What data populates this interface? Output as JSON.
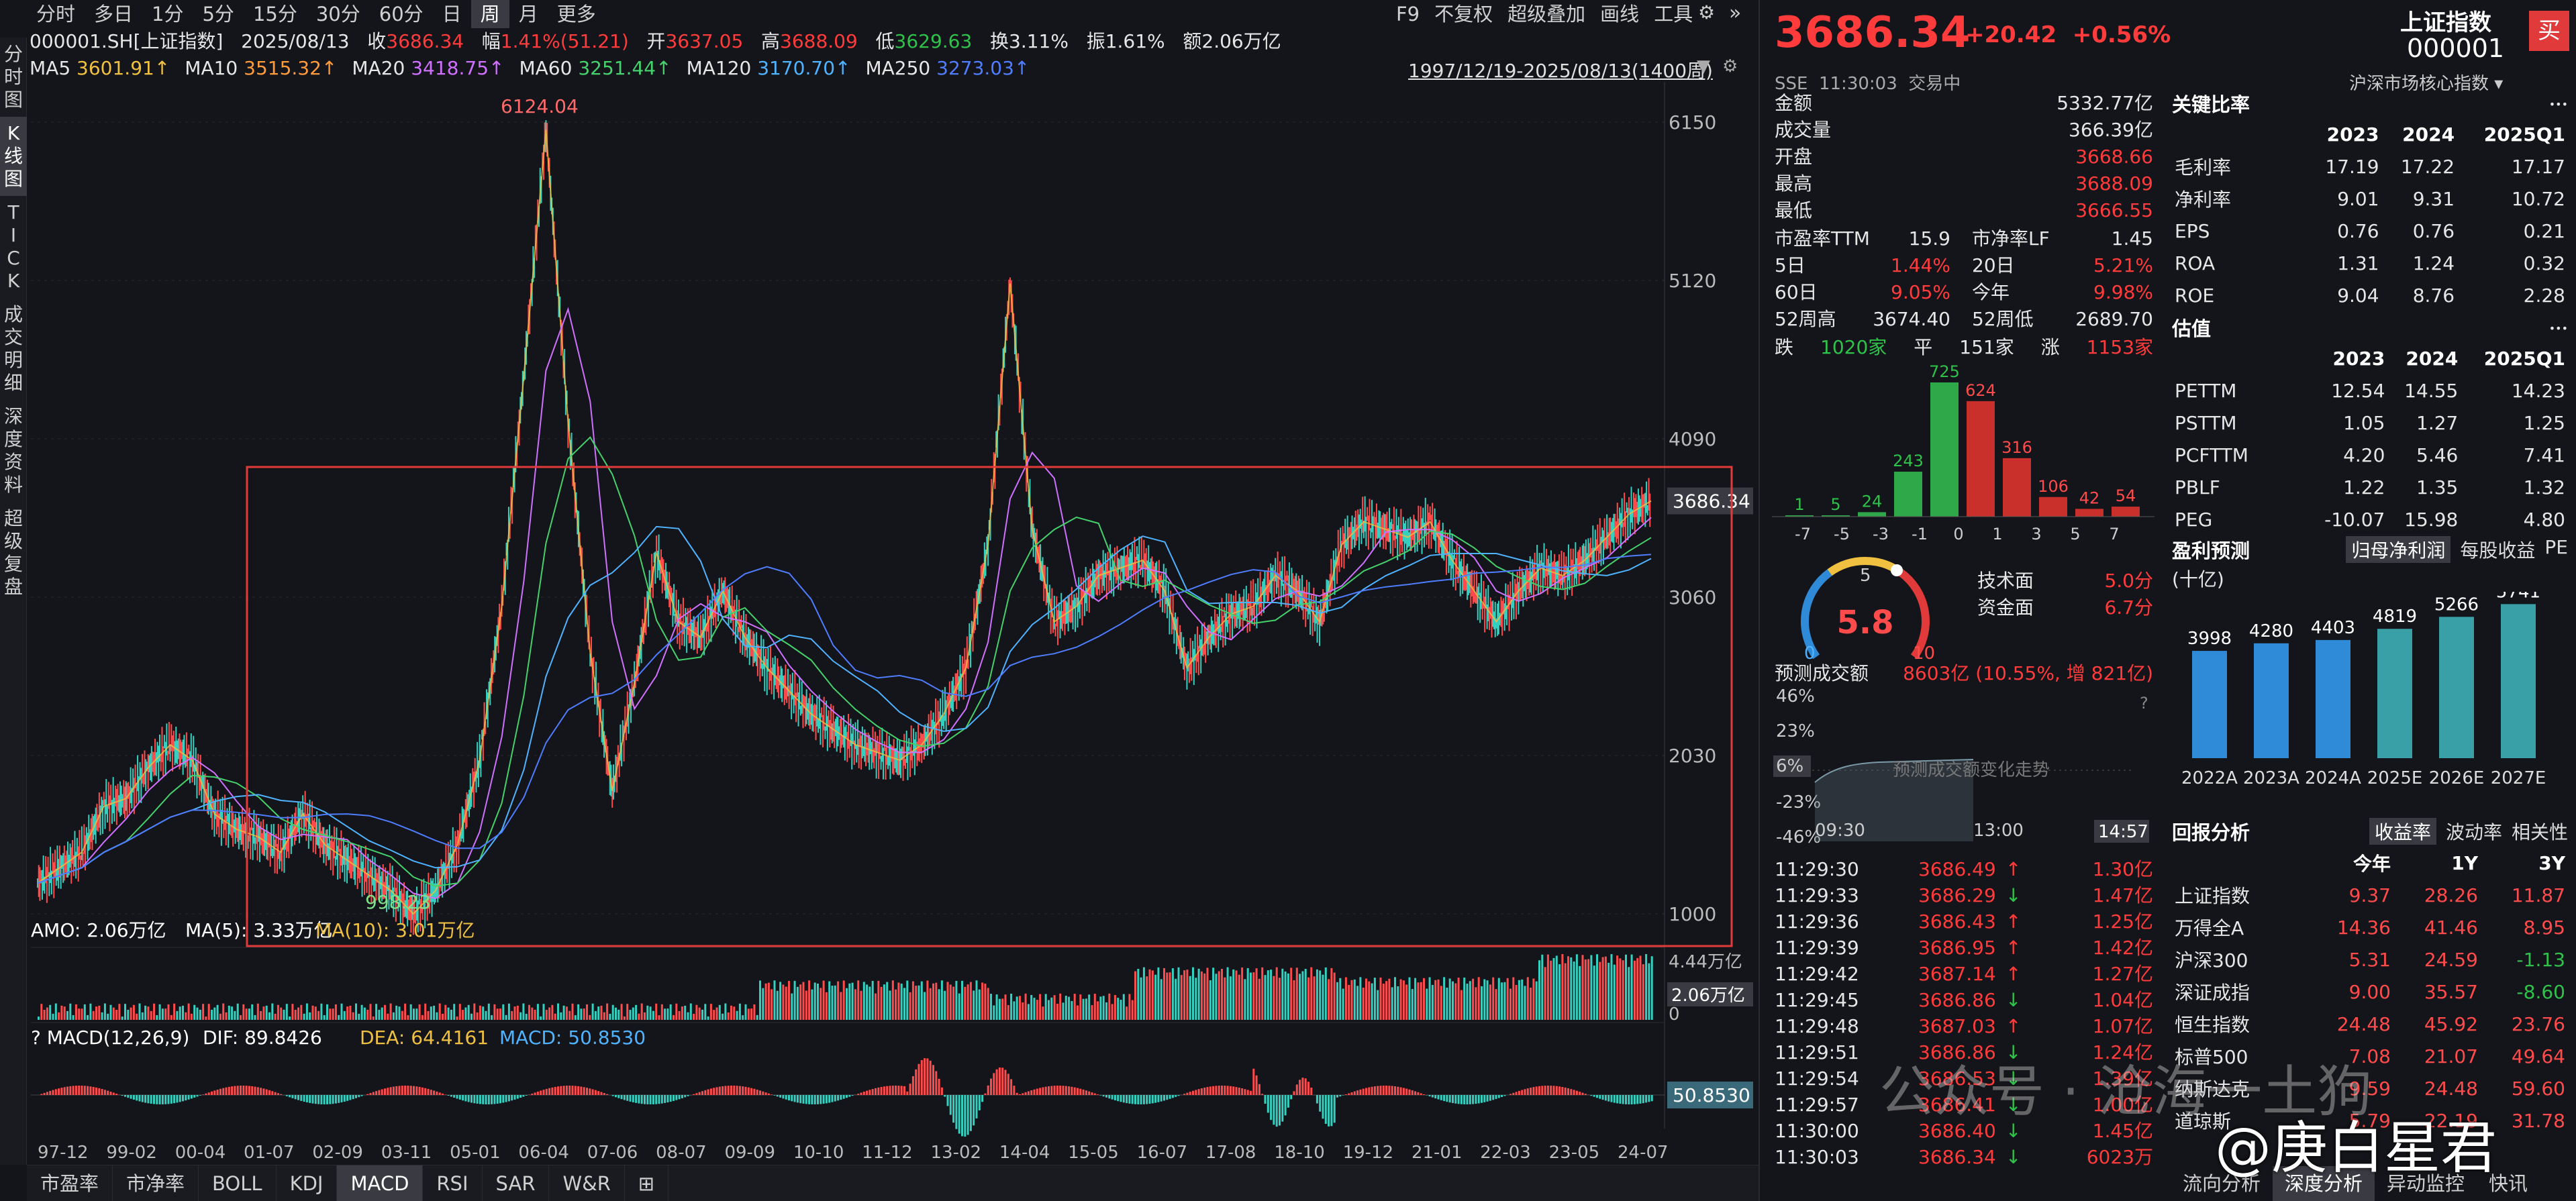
{
  "left_tabs": [
    "分时图",
    "K线图",
    "TICK",
    "成交明细",
    "深度资料",
    "超级复盘"
  ],
  "period_tabs": [
    "分时",
    "多日",
    "1分",
    "5分",
    "15分",
    "30分",
    "60分",
    "日",
    "周",
    "月",
    "更多"
  ],
  "period_active": "周",
  "right_tools": [
    "F9",
    "不复权",
    "超级叠加",
    "画线",
    "工具"
  ],
  "quote": {
    "code": "000001.SH[上证指数]",
    "date": "2025/08/13",
    "close_label": "收",
    "close": "3686.34",
    "chg_label": "幅",
    "chg": "1.41%(51.21)",
    "open_label": "开",
    "open": "3637.05",
    "high_label": "高",
    "high": "3688.09",
    "low_label": "低",
    "low": "3629.63",
    "turnover_label": "换",
    "turnover": "3.11%",
    "amp_label": "振",
    "amp": "1.61%",
    "amount_label": "额",
    "amount": "2.06万亿"
  },
  "ma": [
    {
      "label": "MA5",
      "value": "3601.91↑",
      "color": "#f0c040"
    },
    {
      "label": "MA10",
      "value": "3515.32↑",
      "color": "#ff9b3b"
    },
    {
      "label": "MA20",
      "value": "3418.75↑",
      "color": "#d070ff"
    },
    {
      "label": "MA60",
      "value": "3251.44↑",
      "color": "#45d16b"
    },
    {
      "label": "MA120",
      "value": "3170.70↑",
      "color": "#4fb3ff"
    },
    {
      "label": "MA250",
      "value": "3273.03↑",
      "color": "#4f7dff"
    }
  ],
  "date_range": "1997/12/19-2025/08/13(1400周)",
  "chart": {
    "y_ticks": [
      "6150",
      "5120",
      "4090",
      "3060",
      "2030",
      "1000"
    ],
    "y_tick_values": [
      6150,
      5120,
      4090,
      3060,
      2030,
      1000
    ],
    "current_price_tag": "3686.34",
    "high_label": "6124.04",
    "low_label": "998.23",
    "amo_line": {
      "amo": "AMO: 2.06万亿",
      "ma5": "MA(5): 3.33万亿",
      "ma10": "MA(10): 3.01万亿"
    },
    "vol_ticks": [
      "4.44万亿",
      "2.06万亿",
      "0"
    ],
    "macd_line": {
      "name": "MACD(12,26,9)",
      "dif": "DIF: 89.8426",
      "dea": "DEA: 64.4161",
      "macd": "MACD: 50.8530"
    },
    "macd_tag": "50.8530",
    "x_ticks": [
      "97-12",
      "99-02",
      "00-04",
      "01-07",
      "02-09",
      "03-11",
      "05-01",
      "06-04",
      "07-06",
      "08-07",
      "09-09",
      "10-10",
      "11-12",
      "13-02",
      "14-04",
      "15-05",
      "16-07",
      "17-08",
      "18-10",
      "19-12",
      "21-01",
      "22-03",
      "23-05",
      "24-07"
    ],
    "price_series": [
      1200,
      1300,
      1400,
      1700,
      1750,
      1950,
      2100,
      2000,
      1650,
      1550,
      1500,
      1400,
      1650,
      1450,
      1350,
      1250,
      1150,
      1000,
      1150,
      1450,
      2000,
      3000,
      4500,
      6100,
      4200,
      2700,
      1800,
      2500,
      3350,
      2900,
      2800,
      3100,
      2800,
      2600,
      2450,
      2300,
      2200,
      2100,
      2050,
      2000,
      2100,
      2300,
      2600,
      3400,
      5100,
      3500,
      2900,
      3000,
      3200,
      3250,
      3300,
      3100,
      2600,
      2800,
      2950,
      3000,
      3200,
      3100,
      2900,
      3400,
      3550,
      3500,
      3450,
      3550,
      3300,
      3100,
      2900,
      3100,
      3250,
      3200,
      3300,
      3450,
      3600,
      3686
    ]
  },
  "bottom_tabs": [
    "市盈率",
    "市净率",
    "BOLL",
    "KDJ",
    "MACD",
    "RSI",
    "SAR",
    "W&R"
  ],
  "bottom_active": "MACD",
  "panel": {
    "price": "3686.34",
    "chg": "+20.42",
    "chg_pct": "+0.56%",
    "name": "上证指数",
    "code": "000001",
    "buy": "买",
    "market": "SSE",
    "time": "11:30:03",
    "status": "交易中",
    "sub_index": "沪深市场核心指数",
    "stats": [
      {
        "k": "金额",
        "v": "5332.77亿",
        "c": "white"
      },
      {
        "k": "成交量",
        "v": "366.39亿",
        "c": "white"
      },
      {
        "k": "开盘",
        "v": "3668.66",
        "c": "red"
      },
      {
        "k": "最高",
        "v": "3688.09",
        "c": "red"
      },
      {
        "k": "最低",
        "v": "3666.55",
        "c": "red"
      }
    ],
    "pe": {
      "k1": "市盈率TTM",
      "v1": "15.9",
      "k2": "市净率LF",
      "v2": "1.45"
    },
    "periods": [
      {
        "k1": "5日",
        "v1": "1.44%",
        "k2": "20日",
        "v2": "5.21%"
      },
      {
        "k1": "60日",
        "v1": "9.05%",
        "k2": "今年",
        "v2": "9.98%"
      },
      {
        "k1": "52周高",
        "v1": "3674.40",
        "k2": "52周低",
        "v2": "2689.70"
      }
    ],
    "breadth": {
      "down_label": "跌",
      "down": "1020家",
      "flat_label": "平",
      "flat": "151家",
      "up_label": "涨",
      "up": "1153家"
    },
    "dist_values": [
      "1",
      "5",
      "24",
      "243",
      "725",
      "624",
      "316",
      "106",
      "42",
      "54"
    ],
    "dist_axis": [
      "-7",
      "-5",
      "-3",
      "-1",
      "0",
      "1",
      "3",
      "5",
      "7"
    ],
    "gauge": {
      "score": "5.8",
      "min": "0",
      "mid": "5",
      "max": "10"
    },
    "scores": [
      {
        "k": "技术面",
        "v": "5.0分"
      },
      {
        "k": "资金面",
        "v": "6.7分"
      }
    ],
    "forecast": {
      "label": "预测成交额",
      "value": "8603亿 (10.55%, 增 821亿)"
    },
    "forecast_ticks": [
      "46%",
      "23%",
      "6%",
      "-23%",
      "-46%"
    ],
    "forecast_title": "预测成交额变化走势",
    "forecast_times": [
      "09:30",
      "13:00",
      "14:57"
    ],
    "ticks": [
      {
        "t": "11:29:30",
        "p": "3686.49",
        "d": "up",
        "v": "1.30亿"
      },
      {
        "t": "11:29:33",
        "p": "3686.29",
        "d": "down",
        "v": "1.47亿"
      },
      {
        "t": "11:29:36",
        "p": "3686.43",
        "d": "up",
        "v": "1.25亿"
      },
      {
        "t": "11:29:39",
        "p": "3686.95",
        "d": "up",
        "v": "1.42亿"
      },
      {
        "t": "11:29:42",
        "p": "3687.14",
        "d": "up",
        "v": "1.27亿"
      },
      {
        "t": "11:29:45",
        "p": "3686.86",
        "d": "down",
        "v": "1.04亿"
      },
      {
        "t": "11:29:48",
        "p": "3687.03",
        "d": "up",
        "v": "1.07亿"
      },
      {
        "t": "11:29:51",
        "p": "3686.86",
        "d": "down",
        "v": "1.24亿"
      },
      {
        "t": "11:29:54",
        "p": "3686.53",
        "d": "down",
        "v": "1.39亿"
      },
      {
        "t": "11:29:57",
        "p": "3686.41",
        "d": "down",
        "v": "1.00亿"
      },
      {
        "t": "11:30:00",
        "p": "3686.40",
        "d": "down",
        "v": "1.45亿"
      },
      {
        "t": "11:30:03",
        "p": "3686.34",
        "d": "down",
        "v": "6023万"
      }
    ],
    "ratios": {
      "title": "关键比率",
      "cols": [
        "2023",
        "2024",
        "2025Q1"
      ],
      "rows": [
        {
          "k": "毛利率",
          "v": [
            "17.19",
            "17.22",
            "17.17"
          ]
        },
        {
          "k": "净利率",
          "v": [
            "9.01",
            "9.31",
            "10.72"
          ]
        },
        {
          "k": "EPS",
          "v": [
            "0.76",
            "0.76",
            "0.21"
          ]
        },
        {
          "k": "ROA",
          "v": [
            "1.31",
            "1.24",
            "0.32"
          ]
        },
        {
          "k": "ROE",
          "v": [
            "9.04",
            "8.76",
            "2.28"
          ]
        }
      ]
    },
    "valuation": {
      "title": "估值",
      "cols": [
        "2023",
        "2024",
        "2025Q1"
      ],
      "rows": [
        {
          "k": "PETTM",
          "v": [
            "12.54",
            "14.55",
            "14.23"
          ]
        },
        {
          "k": "PSTTM",
          "v": [
            "1.05",
            "1.27",
            "1.25"
          ]
        },
        {
          "k": "PCFTTM",
          "v": [
            "4.20",
            "5.46",
            "7.41"
          ]
        },
        {
          "k": "PBLF",
          "v": [
            "1.22",
            "1.35",
            "1.32"
          ]
        },
        {
          "k": "PEG",
          "v": [
            "-10.07",
            "15.98",
            "4.80"
          ]
        }
      ]
    },
    "profit": {
      "title": "盈利预测",
      "unit": "(十亿)",
      "tabs": [
        "归母净利润",
        "每股收益",
        "PE"
      ],
      "bars": [
        {
          "year": "2022A",
          "value": 3998
        },
        {
          "year": "2023A",
          "value": 4280
        },
        {
          "year": "2024A",
          "value": 4403
        },
        {
          "year": "2025E",
          "value": 4819
        },
        {
          "year": "2026E",
          "value": 5266
        },
        {
          "year": "2027E",
          "value": 5741
        }
      ]
    },
    "returns": {
      "title": "回报分析",
      "tabs": [
        "收益率",
        "波动率",
        "相关性"
      ],
      "cols": [
        "今年",
        "1Y",
        "3Y"
      ],
      "rows": [
        {
          "k": "上证指数",
          "v": [
            "9.37",
            "28.26",
            "11.87"
          ]
        },
        {
          "k": "万得全A",
          "v": [
            "14.36",
            "41.46",
            "8.95"
          ]
        },
        {
          "k": "沪深300",
          "v": [
            "5.31",
            "24.59",
            "-1.13"
          ]
        },
        {
          "k": "深证成指",
          "v": [
            "9.00",
            "35.57",
            "-8.60"
          ]
        },
        {
          "k": "恒生指数",
          "v": [
            "24.48",
            "45.92",
            "23.76"
          ]
        },
        {
          "k": "标普500",
          "v": [
            "7.08",
            "21.07",
            "49.64"
          ]
        },
        {
          "k": "纳斯达克",
          "v": [
            "9.59",
            "24.48",
            "59.60"
          ]
        },
        {
          "k": "道琼斯",
          "v": [
            "5.79",
            "22.19",
            "31.78"
          ]
        }
      ]
    },
    "bottom_tabs": [
      "流向分析",
      "深度分析",
      "异动监控",
      "快讯"
    ],
    "bottom_active": "深度分析"
  },
  "watermarks": {
    "w1": "公众号 · 沧海一土狗",
    "w2": "@庚白星君"
  }
}
